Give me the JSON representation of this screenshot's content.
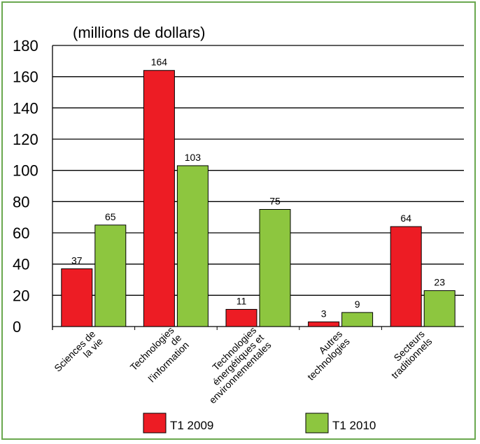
{
  "chart_data": {
    "type": "bar",
    "ylabel": "(millions de dollars)",
    "ylim": [
      0,
      180
    ],
    "yticks": [
      "0",
      "20",
      "40",
      "60",
      "80",
      "100",
      "120",
      "140",
      "160",
      "180"
    ],
    "categories": [
      [
        "Sciences de",
        "la vie"
      ],
      [
        "Technologies",
        "de",
        "l'information"
      ],
      [
        "Technologies",
        "énergétiques et",
        "environnementales"
      ],
      [
        "Autres",
        "technologies"
      ],
      [
        "Secteurs",
        "traditionnels"
      ]
    ],
    "series": [
      {
        "name": "T1 2009",
        "color": "#ed1c24",
        "values": [
          37,
          164,
          11,
          3,
          64
        ]
      },
      {
        "name": "T1 2010",
        "color": "#8dc63f",
        "values": [
          65,
          103,
          75,
          9,
          23
        ]
      }
    ],
    "grid": true,
    "legend": "bottom"
  }
}
